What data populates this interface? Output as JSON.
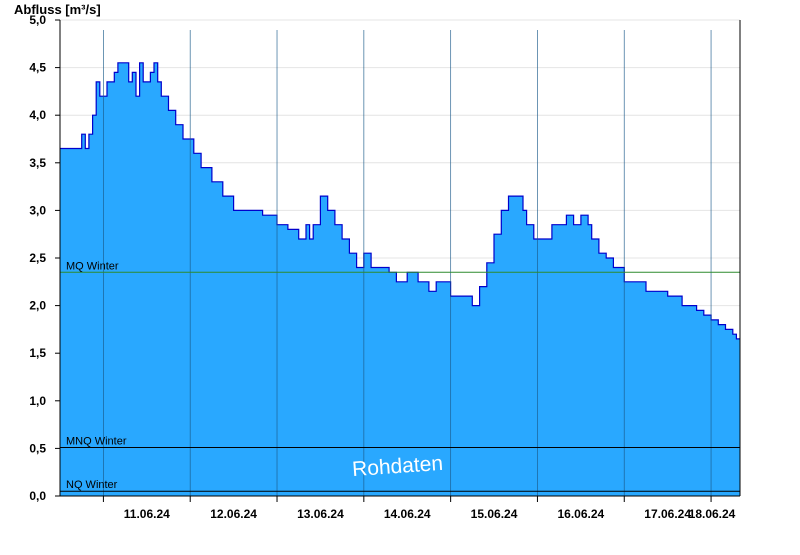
{
  "chart_data": {
    "type": "area",
    "ylabel": "Abfluss [m³/s]",
    "ylim": [
      0,
      5.0
    ],
    "y_ticks": [
      {
        "value": 0.0,
        "label": "0,0"
      },
      {
        "value": 0.5,
        "label": "0,5"
      },
      {
        "value": 1.0,
        "label": "1,0"
      },
      {
        "value": 1.5,
        "label": "1,5"
      },
      {
        "value": 2.0,
        "label": "2,0"
      },
      {
        "value": 2.5,
        "label": "2,5"
      },
      {
        "value": 3.0,
        "label": "3,0"
      },
      {
        "value": 3.5,
        "label": "3,5"
      },
      {
        "value": 4.0,
        "label": "4,0"
      },
      {
        "value": 4.5,
        "label": "4,5"
      },
      {
        "value": 5.0,
        "label": "5,0"
      }
    ],
    "x_start": "10.06.24 12:00",
    "x_end": "18.06.24 08:00",
    "day_labels": [
      "11.06.24",
      "12.06.24",
      "13.06.24",
      "14.06.24",
      "15.06.24",
      "16.06.24",
      "17.06.24",
      "18.06.24"
    ],
    "day_boundaries": [
      "11.06.24 00:00",
      "12.06.24 00:00",
      "13.06.24 00:00",
      "14.06.24 00:00",
      "15.06.24 00:00",
      "16.06.24 00:00",
      "17.06.24 00:00",
      "18.06.24 00:00"
    ],
    "grid": "horizontal",
    "reference_lines": [
      {
        "name": "MQ Winter",
        "value": 2.35,
        "color": "#2e8b2e"
      },
      {
        "name": "MNQ Winter",
        "value": 0.51,
        "color": "#000000"
      },
      {
        "name": "NQ Winter",
        "value": 0.05,
        "color": "#000000"
      }
    ],
    "watermark": "Rohdaten",
    "series": [
      {
        "fill_color": "#29a8ff",
        "line_color": "#0000cc",
        "points": [
          [
            "10.06.24 12:00",
            3.65
          ],
          [
            "10.06.24 17:00",
            3.65
          ],
          [
            "10.06.24 18:00",
            3.8
          ],
          [
            "10.06.24 19:00",
            3.65
          ],
          [
            "10.06.24 20:00",
            3.8
          ],
          [
            "10.06.24 21:00",
            4.0
          ],
          [
            "10.06.24 22:00",
            4.35
          ],
          [
            "10.06.24 23:00",
            4.2
          ],
          [
            "11.06.24 01:00",
            4.35
          ],
          [
            "11.06.24 03:00",
            4.45
          ],
          [
            "11.06.24 04:00",
            4.55
          ],
          [
            "11.06.24 06:00",
            4.55
          ],
          [
            "11.06.24 07:00",
            4.35
          ],
          [
            "11.06.24 08:00",
            4.45
          ],
          [
            "11.06.24 09:00",
            4.2
          ],
          [
            "11.06.24 10:00",
            4.55
          ],
          [
            "11.06.24 11:00",
            4.35
          ],
          [
            "11.06.24 12:00",
            4.35
          ],
          [
            "11.06.24 13:00",
            4.45
          ],
          [
            "11.06.24 14:00",
            4.55
          ],
          [
            "11.06.24 15:00",
            4.35
          ],
          [
            "11.06.24 16:00",
            4.2
          ],
          [
            "11.06.24 18:00",
            4.05
          ],
          [
            "11.06.24 20:00",
            3.9
          ],
          [
            "11.06.24 22:00",
            3.75
          ],
          [
            "12.06.24 01:00",
            3.6
          ],
          [
            "12.06.24 03:00",
            3.45
          ],
          [
            "12.06.24 06:00",
            3.3
          ],
          [
            "12.06.24 09:00",
            3.15
          ],
          [
            "12.06.24 12:00",
            3.0
          ],
          [
            "12.06.24 16:00",
            3.0
          ],
          [
            "12.06.24 20:00",
            2.95
          ],
          [
            "13.06.24 00:00",
            2.85
          ],
          [
            "13.06.24 03:00",
            2.8
          ],
          [
            "13.06.24 06:00",
            2.7
          ],
          [
            "13.06.24 08:00",
            2.85
          ],
          [
            "13.06.24 09:00",
            2.7
          ],
          [
            "13.06.24 10:00",
            2.85
          ],
          [
            "13.06.24 12:00",
            3.15
          ],
          [
            "13.06.24 14:00",
            3.0
          ],
          [
            "13.06.24 16:00",
            2.85
          ],
          [
            "13.06.24 18:00",
            2.7
          ],
          [
            "13.06.24 20:00",
            2.55
          ],
          [
            "13.06.24 22:00",
            2.4
          ],
          [
            "14.06.24 00:00",
            2.55
          ],
          [
            "14.06.24 02:00",
            2.4
          ],
          [
            "14.06.24 05:00",
            2.4
          ],
          [
            "14.06.24 07:00",
            2.35
          ],
          [
            "14.06.24 09:00",
            2.25
          ],
          [
            "14.06.24 12:00",
            2.35
          ],
          [
            "14.06.24 15:00",
            2.25
          ],
          [
            "14.06.24 18:00",
            2.15
          ],
          [
            "14.06.24 20:00",
            2.25
          ],
          [
            "14.06.24 22:00",
            2.25
          ],
          [
            "15.06.24 00:00",
            2.1
          ],
          [
            "15.06.24 04:00",
            2.1
          ],
          [
            "15.06.24 06:00",
            2.0
          ],
          [
            "15.06.24 08:00",
            2.2
          ],
          [
            "15.06.24 10:00",
            2.45
          ],
          [
            "15.06.24 12:00",
            2.75
          ],
          [
            "15.06.24 14:00",
            3.0
          ],
          [
            "15.06.24 16:00",
            3.15
          ],
          [
            "15.06.24 18:00",
            3.15
          ],
          [
            "15.06.24 20:00",
            3.0
          ],
          [
            "15.06.24 21:00",
            2.85
          ],
          [
            "15.06.24 23:00",
            2.7
          ],
          [
            "16.06.24 02:00",
            2.7
          ],
          [
            "16.06.24 04:00",
            2.85
          ],
          [
            "16.06.24 06:00",
            2.85
          ],
          [
            "16.06.24 08:00",
            2.95
          ],
          [
            "16.06.24 10:00",
            2.85
          ],
          [
            "16.06.24 12:00",
            2.95
          ],
          [
            "16.06.24 14:00",
            2.85
          ],
          [
            "16.06.24 15:00",
            2.7
          ],
          [
            "16.06.24 17:00",
            2.55
          ],
          [
            "16.06.24 19:00",
            2.5
          ],
          [
            "16.06.24 21:00",
            2.4
          ],
          [
            "17.06.24 00:00",
            2.25
          ],
          [
            "17.06.24 04:00",
            2.25
          ],
          [
            "17.06.24 06:00",
            2.15
          ],
          [
            "17.06.24 12:00",
            2.1
          ],
          [
            "17.06.24 16:00",
            2.0
          ],
          [
            "17.06.24 20:00",
            1.95
          ],
          [
            "17.06.24 22:00",
            1.9
          ],
          [
            "18.06.24 00:00",
            1.85
          ],
          [
            "18.06.24 02:00",
            1.8
          ],
          [
            "18.06.24 04:00",
            1.75
          ],
          [
            "18.06.24 06:00",
            1.7
          ],
          [
            "18.06.24 07:00",
            1.65
          ],
          [
            "18.06.24 08:00",
            1.65
          ]
        ]
      }
    ]
  }
}
